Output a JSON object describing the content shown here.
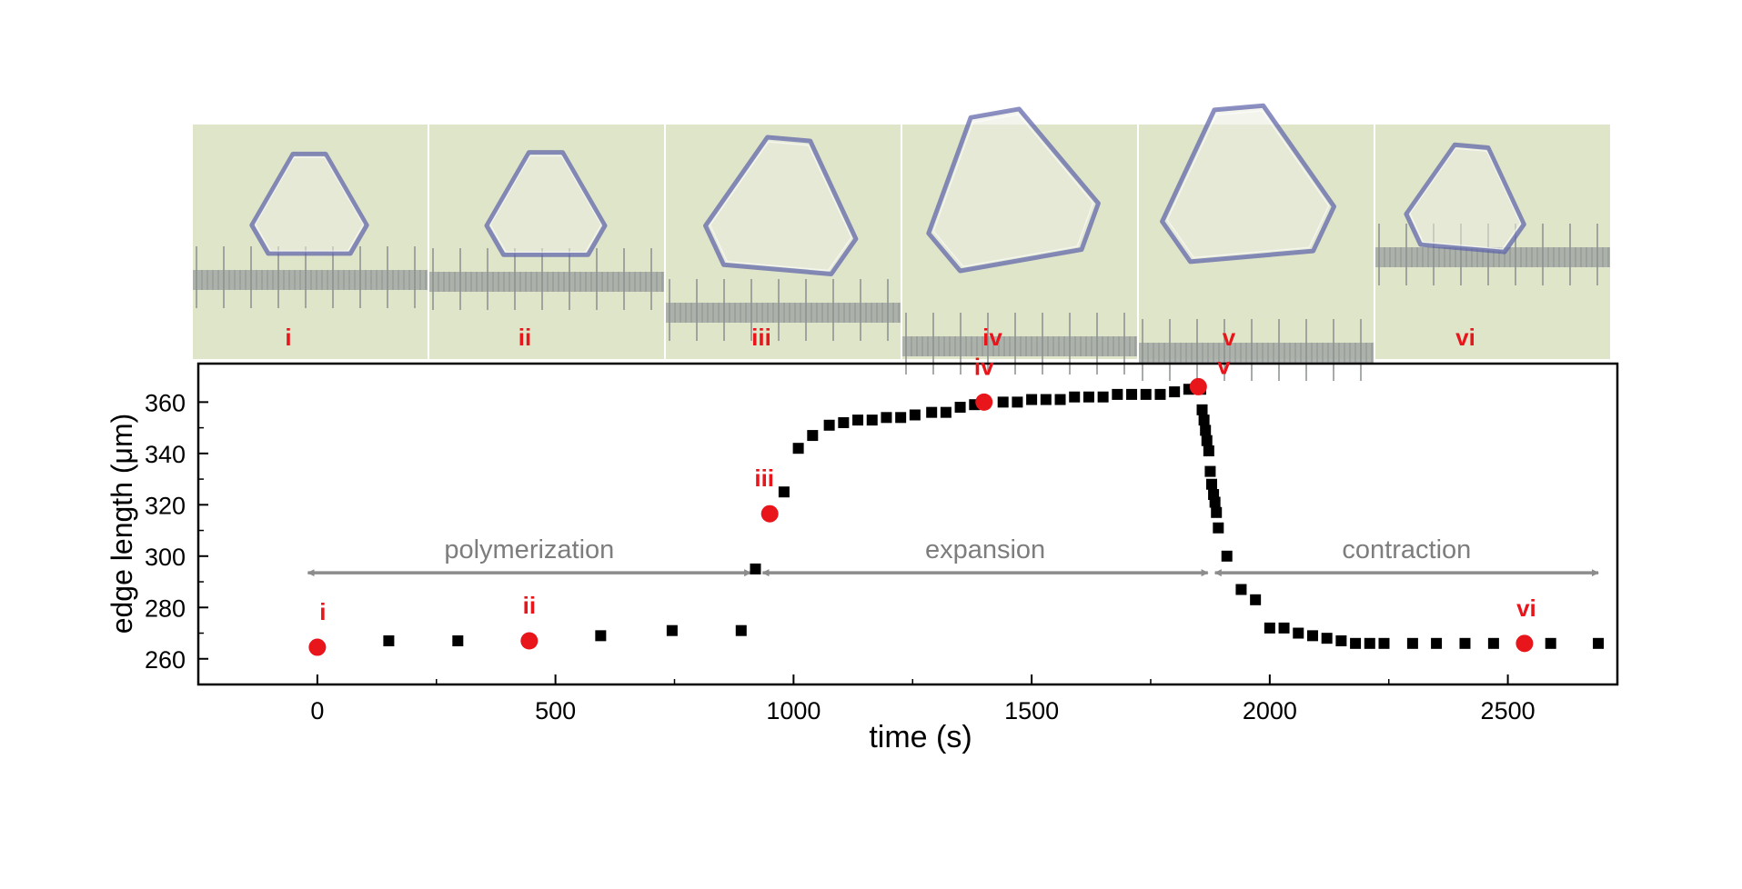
{
  "panels": [
    {
      "label": "i"
    },
    {
      "label": "ii"
    },
    {
      "label": "iii"
    },
    {
      "label": "iv"
    },
    {
      "label": "v"
    },
    {
      "label": "vi"
    }
  ],
  "colors": {
    "marker": "#000000",
    "highlight": "#e8151b",
    "arrow": "#8c8c8c",
    "photo_bg": "#dfe5c9",
    "crystal_edge": "#5a5fa8"
  },
  "chart_data": {
    "type": "scatter",
    "title": "",
    "xlabel": "time (s)",
    "ylabel": "edge length (μm)",
    "xlim": [
      -250,
      2730
    ],
    "ylim": [
      250,
      375
    ],
    "xticks": [
      0,
      500,
      1000,
      1500,
      2000,
      2500
    ],
    "yticks": [
      260,
      280,
      300,
      320,
      340,
      360
    ],
    "grid": false,
    "series": [
      {
        "marker": "square",
        "x": [
          150,
          295,
          595,
          745,
          890,
          920,
          980,
          1010,
          1040,
          1075,
          1105,
          1135,
          1165,
          1195,
          1225,
          1255,
          1290,
          1320,
          1350,
          1380,
          1440,
          1470,
          1500,
          1530,
          1560,
          1590,
          1620,
          1650,
          1680,
          1710,
          1740,
          1770,
          1800,
          1830,
          1855,
          1858,
          1862,
          1865,
          1868,
          1872,
          1875,
          1878,
          1882,
          1885,
          1888,
          1892,
          1910,
          1940,
          1970,
          2000,
          2030,
          2060,
          2090,
          2120,
          2150,
          2180,
          2210,
          2240,
          2300,
          2350,
          2410,
          2470,
          2590,
          2690
        ],
        "y": [
          267,
          267,
          269,
          271,
          271,
          295,
          325,
          342,
          347,
          351,
          352,
          353,
          353,
          354,
          354,
          355,
          356,
          356,
          358,
          359,
          360,
          360,
          361,
          361,
          361,
          362,
          362,
          362,
          363,
          363,
          363,
          363,
          364,
          365,
          365,
          357,
          353,
          349,
          345,
          341,
          333,
          328,
          324,
          321,
          317,
          311,
          300,
          287,
          283,
          272,
          272,
          270,
          269,
          268,
          267,
          266,
          266,
          266,
          266,
          266,
          266,
          266,
          266,
          266
        ]
      },
      {
        "marker": "circle",
        "x": [
          0,
          445,
          950,
          1400,
          1850,
          2535
        ],
        "y": [
          264.5,
          267,
          316.5,
          360,
          366,
          266
        ],
        "labels": [
          "i",
          "ii",
          "iii",
          "iv",
          "v",
          "vi"
        ]
      }
    ],
    "annotations": [
      {
        "text": "polymerization",
        "x_from": -20,
        "x_to": 910,
        "y": 293.5
      },
      {
        "text": "expansion",
        "x_from": 935,
        "x_to": 1870,
        "y": 293.5
      },
      {
        "text": "contraction",
        "x_from": 1885,
        "x_to": 2690,
        "y": 293.5
      }
    ]
  }
}
